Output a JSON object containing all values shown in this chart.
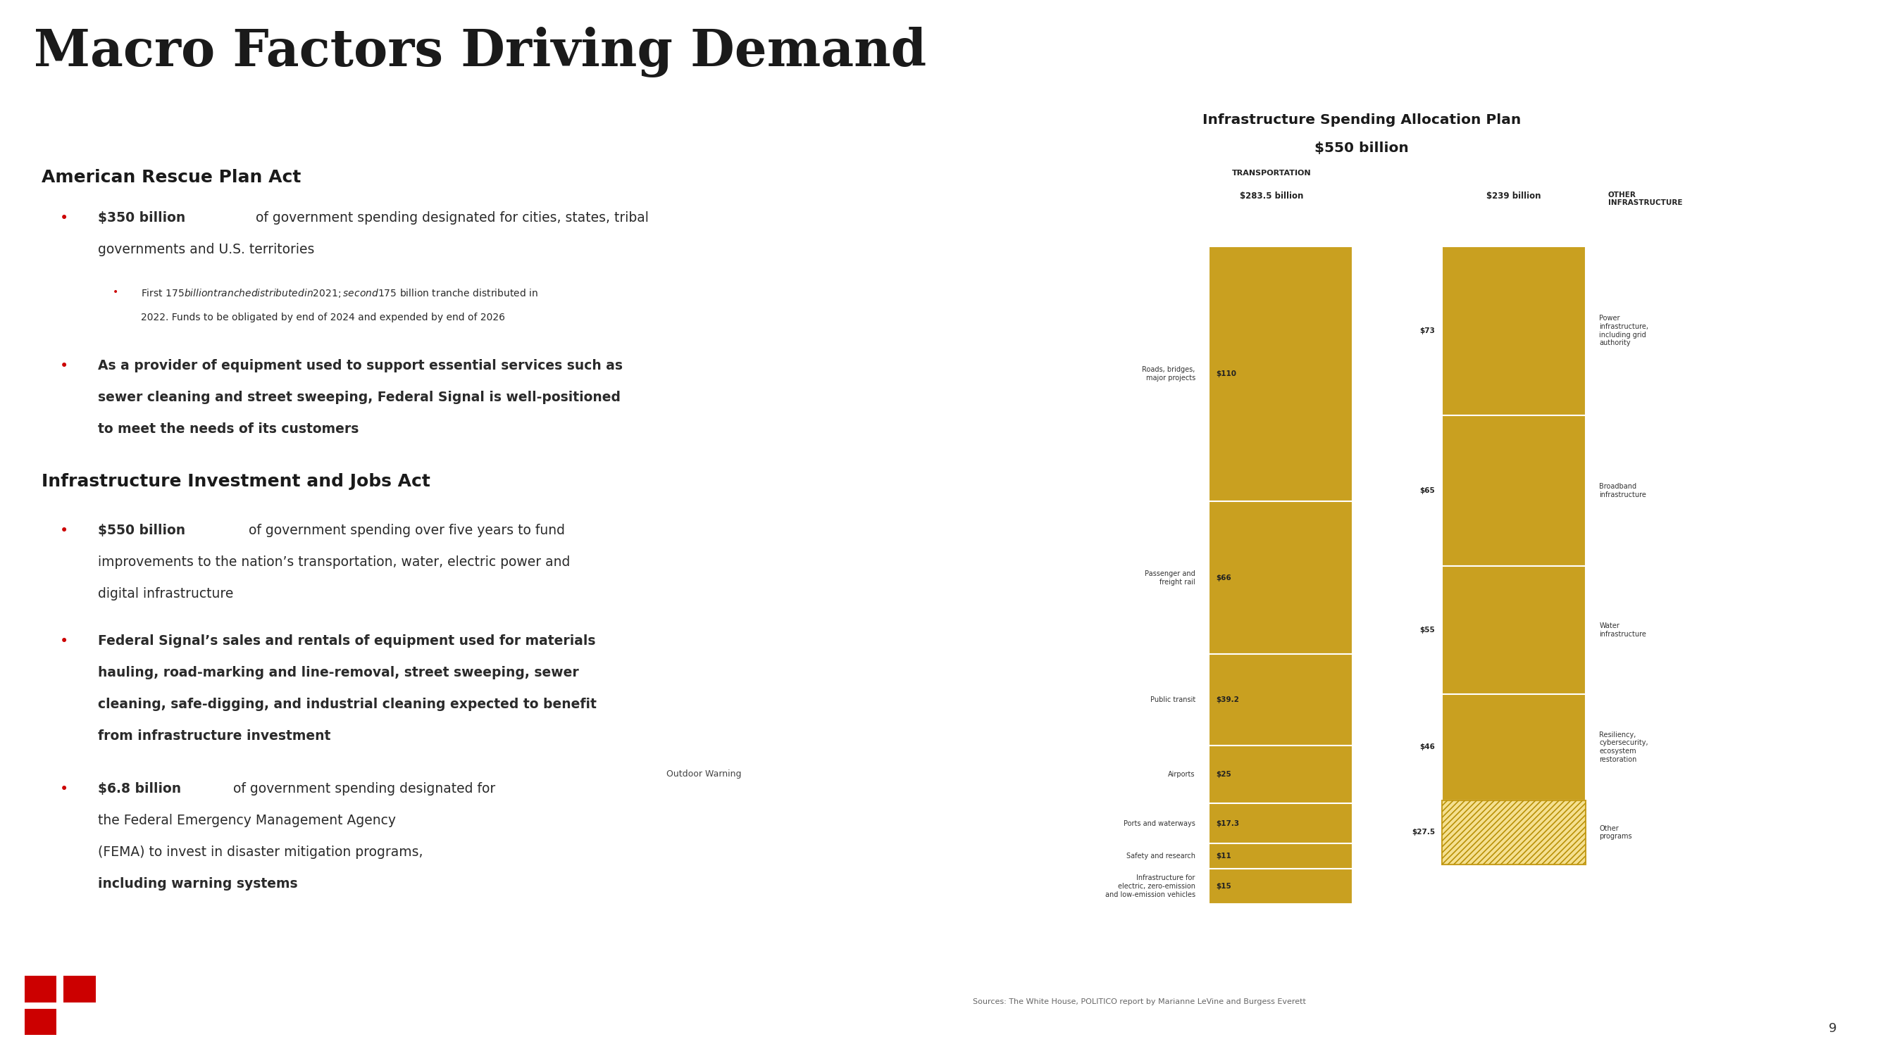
{
  "title": "Macro Factors Driving Demand",
  "slide_bg": "#ffffff",
  "red_line_color": "#cc0000",
  "title_color": "#1a1a1a",
  "section1_heading": "American Rescue Plan Act",
  "section2_heading": "Infrastructure Investment and Jobs Act",
  "chart_title1": "Infrastructure Spending Allocation Plan",
  "chart_title2": "$550 billion",
  "col1_header": "TRANSPORTATION",
  "col1_amount": "$283.5 billion",
  "col2_amount": "$239 billion",
  "col3_header": "OTHER\nINFRASTRUCTURE",
  "gold_color": "#C9A020",
  "transport_categories": [
    {
      "label": "Roads, bridges,\nmajor projects",
      "value": 110.0,
      "label_val": "$110"
    },
    {
      "label": "Passenger and\nfreight rail",
      "value": 66.0,
      "label_val": "$66"
    },
    {
      "label": "Public transit",
      "value": 39.2,
      "label_val": "$39.2"
    },
    {
      "label": "Airports",
      "value": 25.0,
      "label_val": "$25"
    },
    {
      "label": "Ports and waterways",
      "value": 17.3,
      "label_val": "$17.3"
    },
    {
      "label": "Safety and research",
      "value": 11.0,
      "label_val": "$11"
    },
    {
      "label": "Infrastructure for\nelectric, zero-emission\nand low-emission vehicles",
      "value": 15.0,
      "label_val": "$15"
    }
  ],
  "other_categories": [
    {
      "label": "Power\ninfrastructure,\nincluding grid\nauthority",
      "value": 73.0,
      "label_val": "$73",
      "hatch": false
    },
    {
      "label": "Broadband\ninfrastructure",
      "value": 65.0,
      "label_val": "$65",
      "hatch": false
    },
    {
      "label": "Water\ninfrastructure",
      "value": 55.0,
      "label_val": "$55",
      "hatch": false
    },
    {
      "label": "Resiliency,\ncybersecurity,\necosystem\nrestoration",
      "value": 46.0,
      "label_val": "$46",
      "hatch": false
    },
    {
      "label": "Other\nprograms",
      "value": 27.5,
      "label_val": "$27.5",
      "hatch": true
    }
  ],
  "sources_text": "Sources: The White House, POLITICO report by Marianne LeVine and Burgess Everett",
  "page_number": "9",
  "bullet_color": "#cc0000",
  "heading_color": "#1a1a1a",
  "body_color": "#2a2a2a",
  "outdoor_warning_label": "Outdoor Warning"
}
